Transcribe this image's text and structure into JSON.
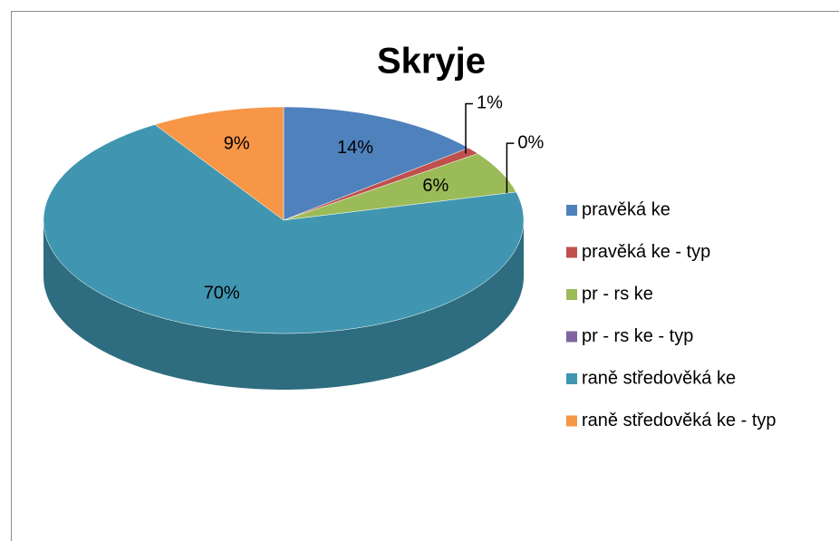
{
  "chart_data": {
    "type": "pie",
    "title": "Skryje",
    "categories": [
      "pravěká ke",
      "pravěká ke - typ",
      "pr - rs ke",
      "pr - rs ke - typ",
      "raně středověká ke",
      "raně středověká ke - typ"
    ],
    "values": [
      14,
      1,
      6,
      0,
      70,
      9
    ],
    "value_labels": [
      "14%",
      "1%",
      "6%",
      "0%",
      "70%",
      "9%"
    ],
    "colors": [
      "#4f81bd",
      "#c0504d",
      "#9bbb59",
      "#8064a2",
      "#4096b0",
      "#f79646"
    ],
    "legend": "right"
  }
}
